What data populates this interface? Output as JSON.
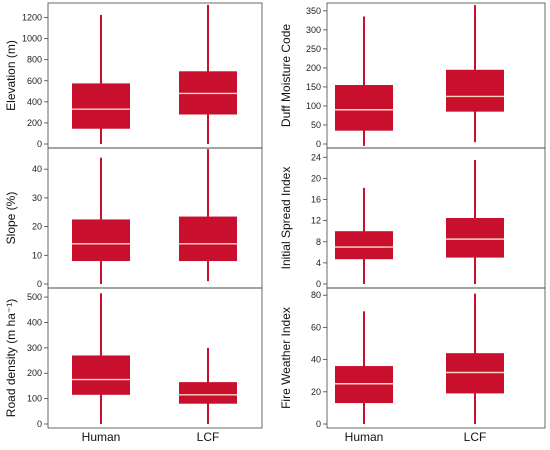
{
  "categories": [
    "Human",
    "LCF"
  ],
  "box_color": "#c8102e",
  "median_color": "#ffd8b8",
  "chart_data": [
    {
      "type": "box",
      "ylabel": "Elevation (m)",
      "ylim": [
        0,
        1300
      ],
      "yticks": [
        0,
        200,
        400,
        600,
        800,
        1000,
        1200
      ],
      "series": [
        {
          "category": "Human",
          "min": 0,
          "q1": 145,
          "median": 330,
          "q3": 575,
          "max": 1225
        },
        {
          "category": "LCF",
          "min": 0,
          "q1": 280,
          "median": 480,
          "q3": 690,
          "max": 1320
        }
      ]
    },
    {
      "type": "box",
      "ylabel": "Slope (%)",
      "ylim": [
        0,
        46
      ],
      "yticks": [
        0,
        10,
        20,
        30,
        40
      ],
      "series": [
        {
          "category": "Human",
          "min": 0,
          "q1": 8,
          "median": 14,
          "q3": 22.5,
          "max": 44
        },
        {
          "category": "LCF",
          "min": 1,
          "q1": 8,
          "median": 14,
          "q3": 23.5,
          "max": 47
        }
      ]
    },
    {
      "type": "box",
      "ylabel": "Road density (m ha⁻¹)",
      "ylim": [
        0,
        520
      ],
      "yticks": [
        0,
        100,
        200,
        300,
        400,
        500
      ],
      "series": [
        {
          "category": "Human",
          "min": 0,
          "q1": 115,
          "median": 175,
          "q3": 270,
          "max": 515
        },
        {
          "category": "LCF",
          "min": 0,
          "q1": 80,
          "median": 115,
          "q3": 165,
          "max": 300
        }
      ]
    },
    {
      "type": "box",
      "ylabel": "Duff Moisture Code",
      "ylim": [
        0,
        360
      ],
      "yticks": [
        0,
        50,
        100,
        150,
        200,
        250,
        300,
        350
      ],
      "series": [
        {
          "category": "Human",
          "min": -5,
          "q1": 35,
          "median": 90,
          "q3": 155,
          "max": 335
        },
        {
          "category": "LCF",
          "min": 5,
          "q1": 85,
          "median": 125,
          "q3": 195,
          "max": 365
        }
      ]
    },
    {
      "type": "box",
      "ylabel": "Initial Spread Index",
      "ylim": [
        0,
        25
      ],
      "yticks": [
        0,
        4,
        8,
        12,
        16,
        20,
        24
      ],
      "series": [
        {
          "category": "Human",
          "min": 0,
          "q1": 4.7,
          "median": 7,
          "q3": 10,
          "max": 18.2
        },
        {
          "category": "LCF",
          "min": 0,
          "q1": 5,
          "median": 8.5,
          "q3": 12.5,
          "max": 23.5
        }
      ]
    },
    {
      "type": "box",
      "ylabel": "Fire Weather Index",
      "ylim": [
        0,
        82
      ],
      "yticks": [
        0,
        20,
        40,
        60,
        80
      ],
      "series": [
        {
          "category": "Human",
          "min": 0,
          "q1": 13,
          "median": 25,
          "q3": 36,
          "max": 70
        },
        {
          "category": "LCF",
          "min": 0,
          "q1": 19,
          "median": 32,
          "q3": 44,
          "max": 81
        }
      ]
    }
  ]
}
